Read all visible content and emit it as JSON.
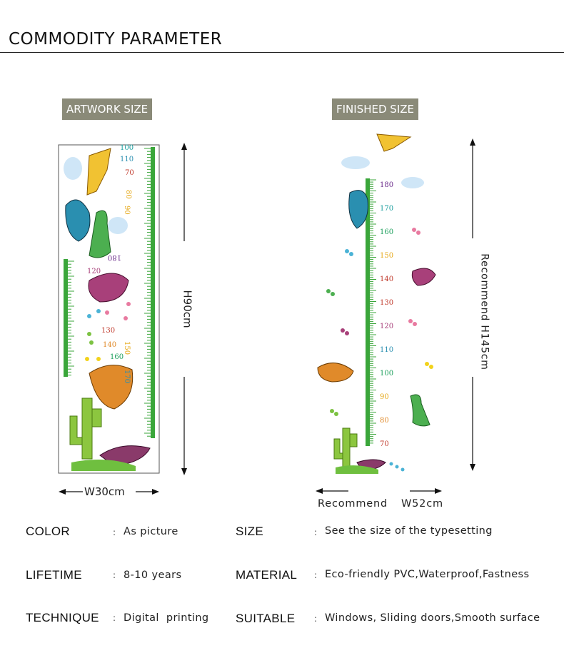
{
  "header": {
    "title": "COMMODITY PARAMETER"
  },
  "artwork": {
    "tag": "ARTWORK SIZE",
    "height_label": "H90cm",
    "width_label": "W30cm",
    "ruler_numbers": [
      "100",
      "110",
      "70",
      "80",
      "90",
      "180",
      "120",
      "130",
      "140",
      "150",
      "160",
      "170"
    ]
  },
  "finished": {
    "tag": "FINISHED SIZE",
    "height_label": "Recommend H145cm",
    "width_label_left": "Recommend",
    "width_label_right": "W52cm",
    "ruler_numbers": [
      "180",
      "170",
      "160",
      "150",
      "140",
      "130",
      "120",
      "110",
      "100",
      "90",
      "80",
      "70"
    ]
  },
  "specs": [
    {
      "label": "COLOR",
      "value": "As picture"
    },
    {
      "label": "SIZE",
      "value": "See the size of the typesetting"
    },
    {
      "label": "LIFETIME",
      "value": "8-10 years"
    },
    {
      "label": "MATERIAL",
      "value": "Eco-friendly PVC,Waterproof,Fastness"
    },
    {
      "label": "TECHNIQUE",
      "value": "Digital  printing"
    },
    {
      "label": "SUITABLE",
      "value": "Windows, Sliding doors,Smooth surface"
    }
  ],
  "colon": ":",
  "colors": {
    "ruler_green": "#3aa63a",
    "tag_bg": "#8a8a78",
    "dino_blue": "#2a8fb0",
    "dino_purple": "#a8407a",
    "dino_orange": "#e08a2a",
    "cactus": "#8cc63f"
  }
}
